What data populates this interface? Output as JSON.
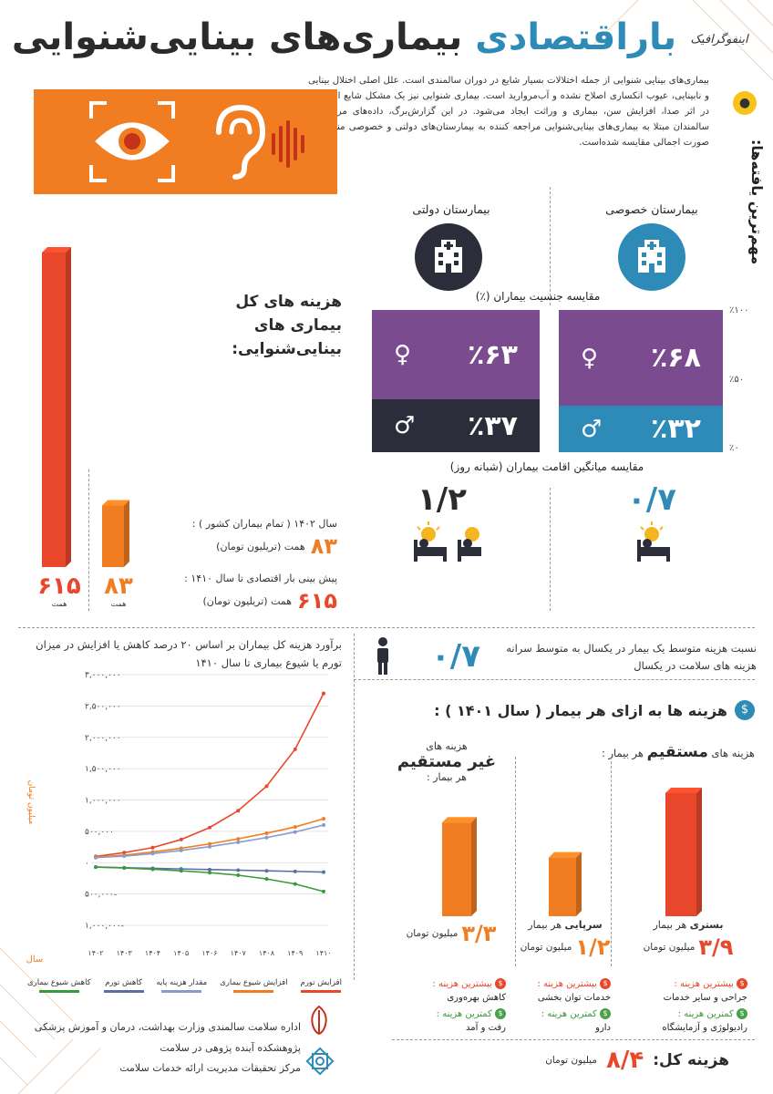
{
  "header": {
    "title_part1": "باراقتصادی",
    "title_part2": "بیماری‌های بینایی‌شنوایی",
    "brand": "اینفوگرافیک"
  },
  "intro": "بیماری‌های بینایی شنوایی از جمله اختلالات بسیار شایع در دوران سالمندی است. علل اصلی اختلال بینایی و نابینایی، عیوب انکساری اصلاح نشده و آب‌مروارید است. بیماری شنوایی نیز یک مشکل شایع است که در اثر صدا، افزایش سن، بیماری و وراثت ایجاد می‌شود. در این گزارش‌برگ، داده‌های مربوط به سالمندان مبتلا به بیماری‌های بینایی‌شنوایی مراجعه کننده به بیمارستان‌های دولتی و خصوصی منتخب به صورت اجمالی مقایسه شده‌است.",
  "findings_label": "مهم‌ترین یافته‌ها:",
  "hospitals": {
    "private_label": "بیمارستان خصوصی",
    "public_label": "بیمارستان دولتی",
    "gender_title": "مقایسه جنسیت بیماران (٪)",
    "axis": [
      "٪۱۰۰",
      "٪۵۰",
      "٪۰"
    ],
    "private_female": "٪۶۸",
    "private_male": "٪۳۲",
    "public_female": "٪۶۳",
    "public_male": "٪۳۷",
    "stay_title": "مقایسه میانگین اقامت بیماران (شبانه روز)",
    "private_stay": "۰/۷",
    "public_stay": "۱/۲"
  },
  "colors": {
    "purple": "#7a4b8e",
    "teal": "#2e8bb7",
    "dark": "#2b2d3a",
    "orange": "#f07d22",
    "red": "#e8472b"
  },
  "total_cost": {
    "title": "هزینه‌ های کل بیماری‌ های بینایی‌شنوایی:",
    "year1402_label": "سال ۱۴۰۲ ( تمام بیماران کشور ) :",
    "year1402_value": "۸۳",
    "year1402_unit": "همت (تریلیون تومان)",
    "forecast_label": "پیش بینی بار اقتصادی تا سال ۱۴۱۰ :",
    "forecast_value": "۶۱۵",
    "forecast_unit": "همت (تریلیون تومان)",
    "bar_big_value": "۶۱۵",
    "bar_small_value": "۸۳",
    "bar_unit": "همت",
    "bar_values": [
      615,
      83
    ]
  },
  "ratio": {
    "value": "۰/۷",
    "text": "نسبت هزینه متوسط یک بیمار در یکسال به متوسط سرانه هزینه‌ های سلامت در یکسال"
  },
  "per_patient": {
    "title": "هزینه‌ ها به ازای هر بیمار ( سال ۱۴۰۱ ) :",
    "direct_label_pre": "هزینه‌ های",
    "direct_label_bold": "مستقیم",
    "direct_label_post": "هر بیمار :",
    "indirect_label_pre": "هزینه‌ های",
    "indirect_label_bold": "غیر مستقیم",
    "indirect_label_post": "هر بیمار :",
    "inpatient_label": "بستری",
    "inpatient_sub": "هر بیمار",
    "inpatient_value": "۳/۹",
    "outpatient_label": "سرپایی",
    "outpatient_sub": "هر بیمار",
    "outpatient_value": "۱/۲",
    "indirect_value": "۳/۳",
    "unit": "میلیون تومان",
    "bar_values": [
      3.9,
      1.2,
      3.3
    ],
    "highest_label": "بیشترین هزینه :",
    "lowest_label": "کمترین هزینه :",
    "inpatient_highest": "جراحی و سایر خدمات",
    "inpatient_lowest": "رادیولوژی و آزمایشگاه",
    "outpatient_highest": "خدمات توان بخشی",
    "outpatient_lowest": "دارو",
    "indirect_highest": "کاهش بهره‌وری",
    "indirect_lowest": "رفت و آمد",
    "total_label": "هزینه کل:",
    "total_value": "۸/۴",
    "total_unit": "میلیون تومان"
  },
  "forecast_chart": {
    "title": "برآورد هزینه کل بیماران بر اساس ۲۰ درصد کاهش یا افزایش در میزان تورم یا شیوع بیماری تا سال ۱۴۱۰",
    "ylabel": "میلیون تومان",
    "xlabel": "سال"
  },
  "chart_data": {
    "type": "line",
    "title": "برآورد هزینه کل بیماران بر اساس ۲۰ درصد کاهش یا افزایش در میزان تورم یا شیوع بیماری تا سال ۱۴۱۰",
    "xlabel": "سال",
    "ylabel": "میلیون تومان",
    "x": [
      "۱۴۰۲",
      "۱۴۰۳",
      "۱۴۰۴",
      "۱۴۰۵",
      "۱۴۰۶",
      "۱۴۰۷",
      "۱۴۰۸",
      "۱۴۰۹",
      "۱۴۱۰"
    ],
    "y_ticks": [
      "۳,۰۰۰,۰۰۰",
      "۲,۵۰۰,۰۰۰",
      "۲,۰۰۰,۰۰۰",
      "۱,۵۰۰,۰۰۰",
      "۱,۰۰۰,۰۰۰",
      "۵۰۰,۰۰۰",
      "۰",
      "-۵۰۰,۰۰۰",
      "-۱,۰۰۰,۰۰۰"
    ],
    "ylim": [
      -1000000,
      3000000
    ],
    "grid": true,
    "legend_position": "bottom",
    "series": [
      {
        "name": "افزایش تورم",
        "color": "#e8472b",
        "values": [
          100000,
          160000,
          240000,
          370000,
          560000,
          830000,
          1220000,
          1810000,
          2700000
        ]
      },
      {
        "name": "افزایش شیوع بیماری",
        "color": "#f07d22",
        "values": [
          90000,
          120000,
          170000,
          230000,
          300000,
          380000,
          470000,
          570000,
          700000
        ]
      },
      {
        "name": "مقدار هزینه پایه",
        "color": "#8a9bc9",
        "values": [
          80000,
          105000,
          145000,
          195000,
          255000,
          325000,
          400000,
          490000,
          600000
        ]
      },
      {
        "name": "کاهش تورم",
        "color": "#5a6fa8",
        "values": [
          -70000,
          -80000,
          -90000,
          -100000,
          -110000,
          -120000,
          -130000,
          -140000,
          -150000
        ]
      },
      {
        "name": "کاهش شیوع بیماری",
        "color": "#3a9a3a",
        "values": [
          -70000,
          -85000,
          -105000,
          -130000,
          -160000,
          -200000,
          -260000,
          -340000,
          -460000
        ]
      }
    ]
  },
  "footer": {
    "org1": "اداره سلامت سالمندی وزارت بهداشت، درمان و آموزش پزشکی",
    "org2": "پژوهشکده آینده پژوهی در سلامت",
    "org3": "مرکز تحقیقات مدیریت ارائه خدمات سلامت"
  },
  "icons": {
    "eye": "eye-icon",
    "ear": "ear-icon",
    "hospital": "hospital-icon",
    "female": "female-icon",
    "male": "male-icon",
    "bed": "bed-icon",
    "dollar": "dollar-icon",
    "bulb": "lightbulb-icon"
  }
}
